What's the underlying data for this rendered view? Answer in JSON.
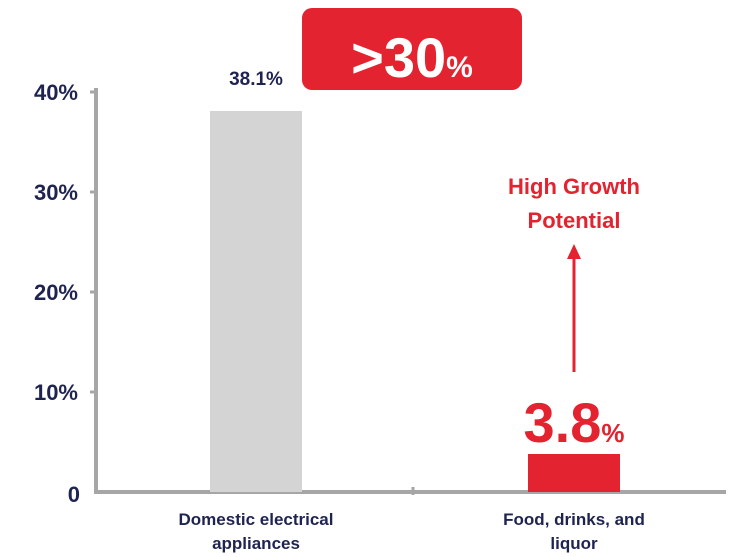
{
  "chart_data": {
    "type": "bar",
    "categories": [
      "Domestic electrical appliances",
      "Food, drinks, and liquor"
    ],
    "category_lines": [
      [
        "Domestic electrical",
        "appliances"
      ],
      [
        "Food, drinks, and",
        "liquor"
      ]
    ],
    "values": [
      38.1,
      3.8
    ],
    "data_labels": [
      {
        "value": "38.1%",
        "suffix": ""
      },
      {
        "value": "3.8",
        "suffix": "%"
      }
    ],
    "ylim": [
      0,
      40
    ],
    "yticks": [
      {
        "value": 0,
        "label": "0"
      },
      {
        "value": 10,
        "label": "10%"
      },
      {
        "value": 20,
        "label": "20%"
      },
      {
        "value": 30,
        "label": "30%"
      },
      {
        "value": 40,
        "label": "40%"
      }
    ],
    "bar_colors": [
      "#d4d4d4",
      "#e3232f"
    ],
    "axis_color": "#a6a6a6",
    "text_color": "#1f2350",
    "accent_color": "#e3232f",
    "callout": {
      "value": ">30",
      "suffix": "%"
    },
    "annotation": {
      "lines": [
        "High Growth",
        "Potential"
      ]
    },
    "grid": false
  }
}
